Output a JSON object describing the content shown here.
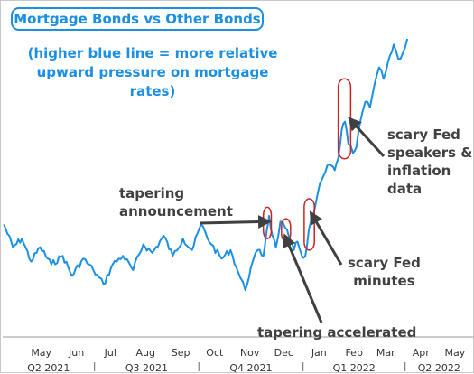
{
  "chart_data": {
    "type": "line",
    "title": "Mortgage Bonds vs Other Bonds",
    "subtitle": "(higher blue line = more relative upward pressure on mortgage rates)",
    "line_color": "#1a8fe3",
    "highlight_color": "#cc2222",
    "annotation_color": "#404040",
    "grid": false,
    "x_range": [
      "2021-04-11",
      "2022-05-31"
    ],
    "y_range": [
      0,
      100
    ],
    "months": [
      "May",
      "Jun",
      "Jul",
      "Aug",
      "Sep",
      "Oct",
      "Nov",
      "Dec",
      "Jan",
      "Feb",
      "Mar",
      "Apr",
      "May"
    ],
    "quarters": [
      "Q2 2021",
      "Q3 2021",
      "Q4 2021",
      "Q1 2022",
      "Q2 2022"
    ],
    "series": [
      {
        "values": [
          [
            "2021-04-12",
            35
          ],
          [
            "2021-04-20",
            27
          ],
          [
            "2021-04-28",
            30
          ],
          [
            "2021-05-06",
            22
          ],
          [
            "2021-05-14",
            27
          ],
          [
            "2021-05-24",
            21
          ],
          [
            "2021-06-03",
            24
          ],
          [
            "2021-06-11",
            17
          ],
          [
            "2021-06-21",
            23
          ],
          [
            "2021-06-30",
            19
          ],
          [
            "2021-07-09",
            14
          ],
          [
            "2021-07-17",
            21
          ],
          [
            "2021-07-26",
            24
          ],
          [
            "2021-08-04",
            19
          ],
          [
            "2021-08-13",
            28
          ],
          [
            "2021-08-21",
            25
          ],
          [
            "2021-08-31",
            31
          ],
          [
            "2021-09-08",
            24
          ],
          [
            "2021-09-17",
            30
          ],
          [
            "2021-09-25",
            26
          ],
          [
            "2021-10-03",
            35
          ],
          [
            "2021-10-12",
            28
          ],
          [
            "2021-10-21",
            23
          ],
          [
            "2021-10-29",
            26
          ],
          [
            "2021-11-05",
            18
          ],
          [
            "2021-11-11",
            12
          ],
          [
            "2021-11-16",
            20
          ],
          [
            "2021-11-22",
            26
          ],
          [
            "2021-11-27",
            24
          ],
          [
            "2021-11-30",
            33
          ],
          [
            "2021-12-02",
            38
          ],
          [
            "2021-12-05",
            31
          ],
          [
            "2021-12-08",
            27
          ],
          [
            "2021-12-12",
            36
          ],
          [
            "2021-12-16",
            34
          ],
          [
            "2021-12-20",
            30
          ],
          [
            "2021-12-24",
            26
          ],
          [
            "2021-12-27",
            29
          ],
          [
            "2021-12-31",
            24
          ],
          [
            "2022-01-03",
            24
          ],
          [
            "2022-01-06",
            33
          ],
          [
            "2022-01-10",
            38
          ],
          [
            "2022-01-14",
            46
          ],
          [
            "2022-01-19",
            52
          ],
          [
            "2022-01-24",
            56
          ],
          [
            "2022-01-29",
            54
          ],
          [
            "2022-02-01",
            58
          ],
          [
            "2022-02-04",
            68
          ],
          [
            "2022-02-07",
            71
          ],
          [
            "2022-02-10",
            63
          ],
          [
            "2022-02-14",
            60
          ],
          [
            "2022-02-17",
            62
          ],
          [
            "2022-02-21",
            72
          ],
          [
            "2022-02-25",
            78
          ],
          [
            "2022-03-01",
            76
          ],
          [
            "2022-03-05",
            84
          ],
          [
            "2022-03-09",
            90
          ],
          [
            "2022-03-13",
            86
          ],
          [
            "2022-03-17",
            92
          ],
          [
            "2022-03-22",
            98
          ],
          [
            "2022-03-26",
            93
          ],
          [
            "2022-03-30",
            95
          ],
          [
            "2022-04-03",
            100
          ]
        ]
      }
    ],
    "highlights": [
      {
        "start": "2021-11-27",
        "end": "2021-12-04",
        "low": 30,
        "high": 41
      },
      {
        "start": "2021-12-13",
        "end": "2021-12-21",
        "low": 29,
        "high": 37
      },
      {
        "start": "2022-01-02",
        "end": "2022-01-11",
        "low": 26,
        "high": 44
      },
      {
        "start": "2022-02-01",
        "end": "2022-02-12",
        "low": 58,
        "high": 86
      }
    ],
    "annotations": [
      {
        "text": "tapering\nannouncement",
        "target": [
          "2021-12-02",
          36
        ]
      },
      {
        "text": "tapering accelerated",
        "target": [
          "2021-12-16",
          31
        ]
      },
      {
        "text": "scary Fed\nminutes",
        "target": [
          "2022-01-08",
          39
        ]
      },
      {
        "text": "scary Fed\nspeakers &\ninflation\ndata",
        "target": [
          "2022-02-11",
          72
        ]
      }
    ]
  }
}
